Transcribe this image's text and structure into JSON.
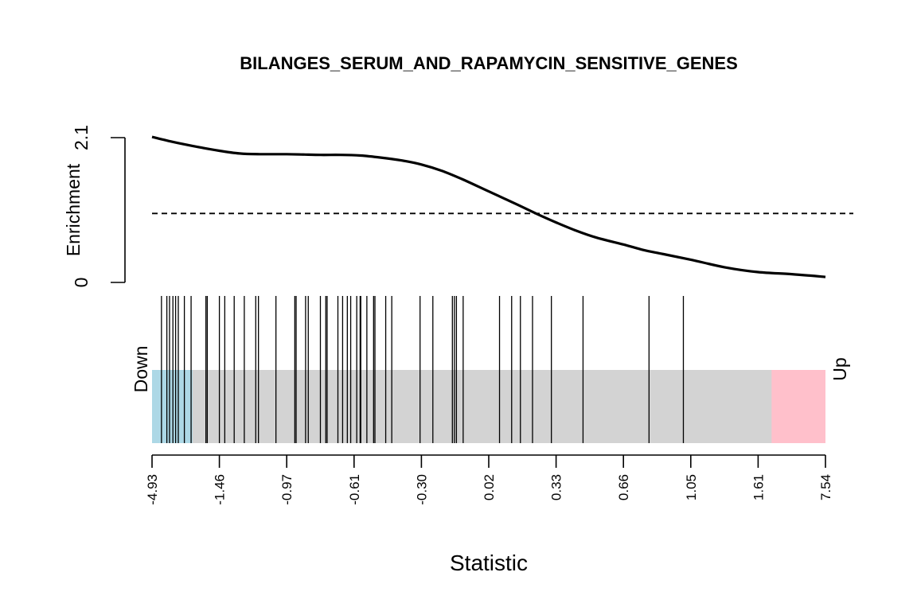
{
  "chart_data": {
    "type": "barcode",
    "title": "BILANGES_SERUM_AND_RAPAMYCIN_SENSITIVE_GENES",
    "xlabel": "Statistic",
    "ylabel": "Enrichment",
    "x_tick_labels": [
      "-4.93",
      "-1.46",
      "-0.97",
      "-0.61",
      "-0.30",
      "0.02",
      "0.33",
      "0.66",
      "1.05",
      "1.61",
      "7.54"
    ],
    "y_ticks": [
      {
        "value": 0,
        "label": "0"
      },
      {
        "value": 2.1,
        "label": "2.1"
      }
    ],
    "ylim": [
      0,
      2.1
    ],
    "reference_line": {
      "value": 1.0,
      "style": "dashed"
    },
    "down_label": "Down",
    "up_label": "Up",
    "rank_range": [
      0,
      1
    ],
    "down_region_end": 0.06,
    "up_region_start": 0.92,
    "colors": {
      "down": "#add8e6",
      "neutral": "#d3d3d3",
      "up": "#ffc0cb",
      "curve": "#000000",
      "bars": "#000000"
    },
    "enrichment_curve": {
      "rank": [
        0.0,
        0.03,
        0.06,
        0.1,
        0.13,
        0.16,
        0.2,
        0.25,
        0.28,
        0.31,
        0.34,
        0.37,
        0.4,
        0.43,
        0.46,
        0.5,
        0.54,
        0.57,
        0.6,
        0.63,
        0.66,
        0.7,
        0.73,
        0.76,
        0.8,
        0.85,
        0.9,
        0.95,
        1.0
      ],
      "enrichment": [
        2.11,
        2.04,
        1.98,
        1.91,
        1.87,
        1.86,
        1.86,
        1.85,
        1.85,
        1.84,
        1.81,
        1.77,
        1.71,
        1.62,
        1.5,
        1.32,
        1.14,
        1.0,
        0.87,
        0.75,
        0.65,
        0.55,
        0.47,
        0.41,
        0.33,
        0.22,
        0.15,
        0.12,
        0.08
      ]
    },
    "gene_positions": [
      0.014,
      0.022,
      0.026,
      0.031,
      0.035,
      0.039,
      0.048,
      0.058,
      0.08,
      0.082,
      0.1,
      0.108,
      0.122,
      0.137,
      0.154,
      0.158,
      0.184,
      0.212,
      0.214,
      0.228,
      0.232,
      0.25,
      0.258,
      0.26,
      0.276,
      0.283,
      0.29,
      0.295,
      0.304,
      0.309,
      0.31,
      0.319,
      0.329,
      0.331,
      0.347,
      0.356,
      0.398,
      0.417,
      0.446,
      0.449,
      0.452,
      0.462,
      0.516,
      0.534,
      0.547,
      0.565,
      0.593,
      0.64,
      0.738,
      0.789
    ]
  }
}
